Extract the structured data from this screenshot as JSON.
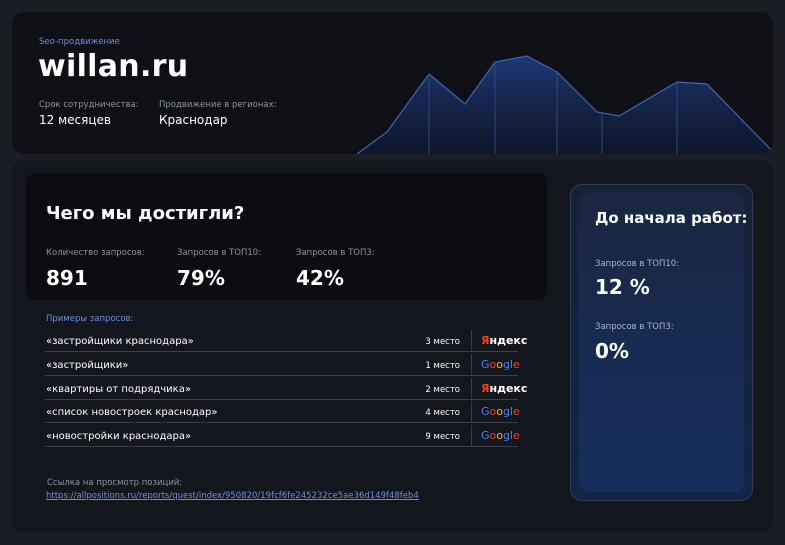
{
  "header": {
    "eyebrow": "Seo-продвижение",
    "site": "willan.ru",
    "term_label": "Срок сотрудничества:",
    "term_value": "12 месяцев",
    "region_label": "Продвижение в регионах:",
    "region_value": "Краснодар"
  },
  "achievements": {
    "title": "Чего мы достигли?",
    "stats": [
      {
        "label": "Количество запросов:",
        "value": "891"
      },
      {
        "label": "Запросов в ТОП10:",
        "value": "79%"
      },
      {
        "label": "Запросов в ТОП3:",
        "value": "42%"
      }
    ]
  },
  "examples": {
    "label": "Примеры запросов:",
    "rows": [
      {
        "query": "«застройщики краснодара»",
        "place": "3 место",
        "engine": "yandex-logo"
      },
      {
        "query": "«застройщики»",
        "place": "1 место",
        "engine": "google-logo"
      },
      {
        "query": "«квартиры от подрядчика»",
        "place": "2 место",
        "engine": "yandex-logo"
      },
      {
        "query": "«список новостроек краснодар»",
        "place": "4 место",
        "engine": "google-logo"
      },
      {
        "query": "«новостройки краснодара»",
        "place": "9 место",
        "engine": "google-logo"
      }
    ]
  },
  "report": {
    "label": "Ссылка на просмотр позиций:",
    "url": "https://allpositions.ru/reports/quest/index/950820/19fcf6fe245232ce5ae36d149f48feb4"
  },
  "before": {
    "title": "До начала работ:",
    "top10_label": "Запросов в ТОП10:",
    "top10_value": "12 %",
    "top3_label": "Запросов в ТОП3:",
    "top3_value": "0%"
  },
  "logos": {
    "yandex": "Яндекс",
    "google": "Google"
  },
  "colors": {
    "accent": "#6d8fe0",
    "background": "#1a1d24",
    "card": "#0e1016",
    "yandex_red": "#fc3f1d"
  }
}
